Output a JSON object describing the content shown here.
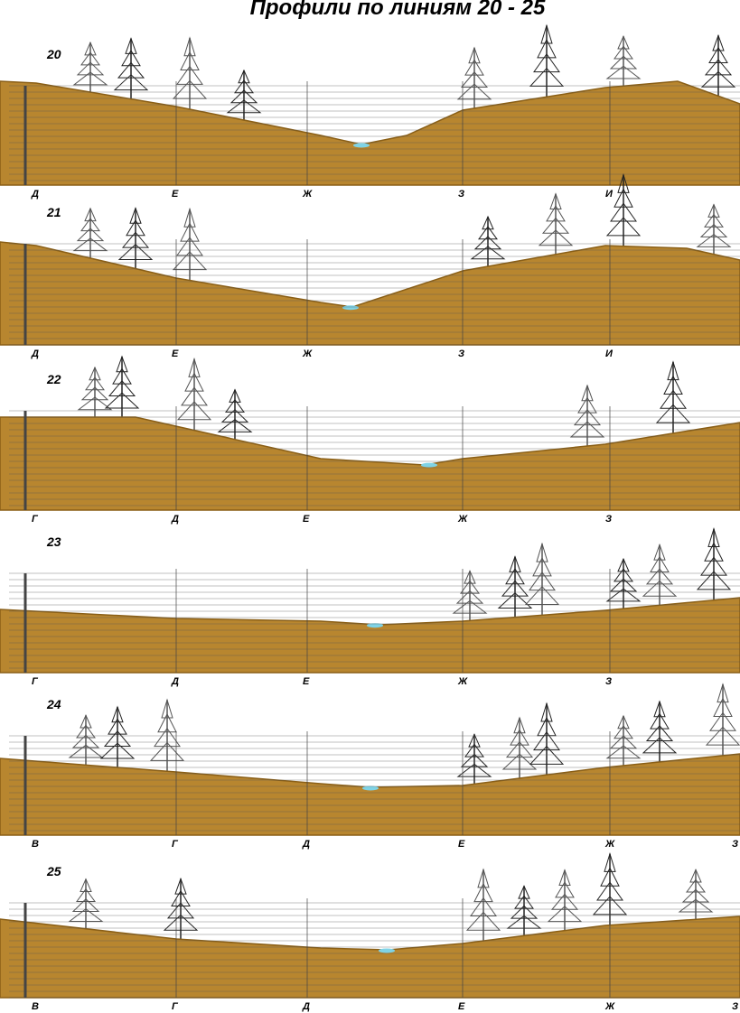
{
  "title": "Профили по линиям 20 - 25",
  "profiles": [
    {
      "number": "20",
      "points": [
        "Д",
        "Е",
        "Ж",
        "З",
        "И"
      ]
    },
    {
      "number": "21",
      "points": [
        "Д",
        "Е",
        "Ж",
        "З",
        "И"
      ]
    },
    {
      "number": "22",
      "points": [
        "Г",
        "Д",
        "Е",
        "Ж",
        "З"
      ]
    },
    {
      "number": "23",
      "points": [
        "Г",
        "Д",
        "Е",
        "Ж",
        "З"
      ]
    },
    {
      "number": "24",
      "points": [
        "В",
        "Г",
        "Д",
        "Е",
        "Ж",
        "З"
      ]
    },
    {
      "number": "25",
      "points": [
        "В",
        "Г",
        "Д",
        "Е",
        "Ж",
        "З"
      ]
    }
  ]
}
